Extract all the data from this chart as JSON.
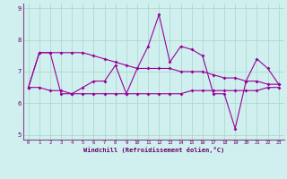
{
  "xlabel": "Windchill (Refroidissement éolien,°C)",
  "background_color": "#cff0ee",
  "grid_color": "#b0d8d0",
  "line_color": "#990099",
  "x": [
    0,
    1,
    2,
    3,
    4,
    5,
    6,
    7,
    8,
    9,
    10,
    11,
    12,
    13,
    14,
    15,
    16,
    17,
    18,
    19,
    20,
    21,
    22,
    23
  ],
  "y_main": [
    6.5,
    7.6,
    7.6,
    6.3,
    6.3,
    6.5,
    6.7,
    6.7,
    7.2,
    6.3,
    7.1,
    7.8,
    8.8,
    7.3,
    7.8,
    7.7,
    7.5,
    6.3,
    6.3,
    5.2,
    6.7,
    7.4,
    7.1,
    6.6
  ],
  "y_upper": [
    6.5,
    7.6,
    7.6,
    7.6,
    7.6,
    7.6,
    7.5,
    7.4,
    7.3,
    7.2,
    7.1,
    7.1,
    7.1,
    7.1,
    7.0,
    7.0,
    7.0,
    6.9,
    6.8,
    6.8,
    6.7,
    6.7,
    6.6,
    6.6
  ],
  "y_lower": [
    6.5,
    6.5,
    6.4,
    6.4,
    6.3,
    6.3,
    6.3,
    6.3,
    6.3,
    6.3,
    6.3,
    6.3,
    6.3,
    6.3,
    6.3,
    6.4,
    6.4,
    6.4,
    6.4,
    6.4,
    6.4,
    6.4,
    6.5,
    6.5
  ],
  "ylim": [
    4.85,
    9.15
  ],
  "yticks": [
    5,
    6,
    7,
    8,
    9
  ],
  "xlim": [
    -0.5,
    23.5
  ],
  "xticks": [
    0,
    1,
    2,
    3,
    4,
    5,
    6,
    7,
    8,
    9,
    10,
    11,
    12,
    13,
    14,
    15,
    16,
    17,
    18,
    19,
    20,
    21,
    22,
    23
  ]
}
